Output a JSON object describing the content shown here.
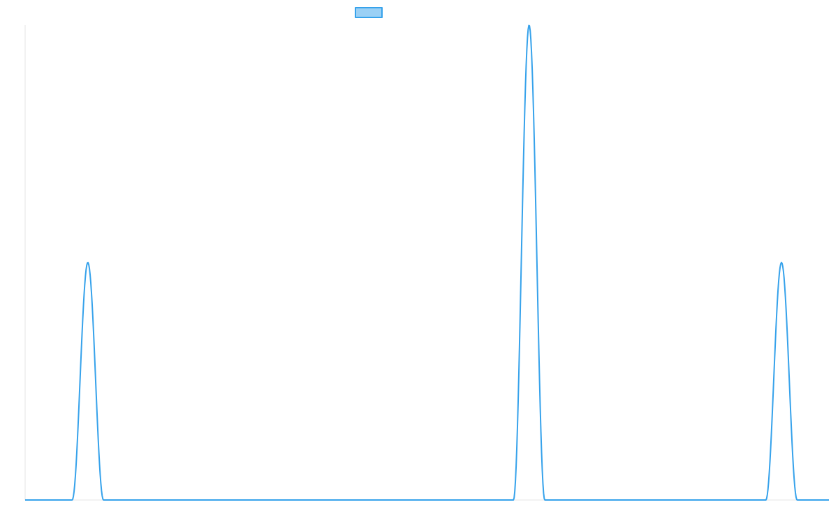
{
  "colors": {
    "series_stroke": "#36a2eb",
    "series_fill": "rgba(54,162,235,0.5)",
    "axis": "#e5e5e5"
  },
  "chart_data": {
    "type": "line",
    "title": "",
    "xlabel": "",
    "ylabel": "",
    "grid": false,
    "legend": "top",
    "x_range": [
      0,
      1
    ],
    "ylim": [
      0,
      1
    ],
    "series": [
      {
        "name": "",
        "color": "#36a2eb",
        "baseline": 0,
        "peaks": [
          {
            "center": 0.078,
            "height": 0.5,
            "half_width": 0.0195
          },
          {
            "center": 0.627,
            "height": 1.0,
            "half_width": 0.0195
          },
          {
            "center": 0.941,
            "height": 0.5,
            "half_width": 0.0195
          }
        ]
      }
    ]
  }
}
